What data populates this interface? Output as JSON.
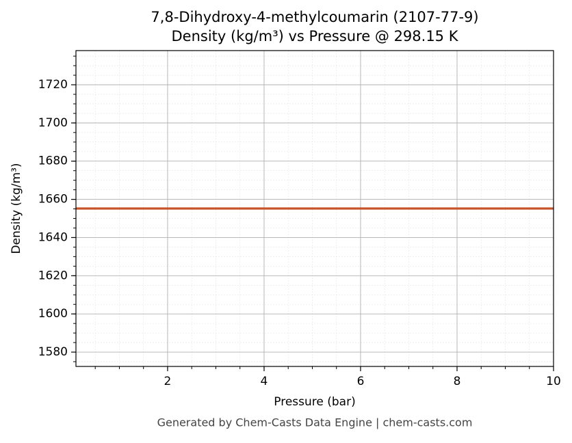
{
  "chart_data": {
    "type": "line",
    "title": [
      "7,8-Dihydroxy-4-methylcoumarin (2107-77-9)",
      "Density (kg/m³) vs Pressure @ 298.15 K"
    ],
    "x_label": "Pressure (bar)",
    "y_label": "Density (kg/m³)",
    "x": [
      0.1,
      10
    ],
    "series": [
      {
        "name": "Density",
        "color": "#c8532a",
        "values": [
          1655.2,
          1655.2
        ]
      }
    ],
    "xlim": [
      0.1,
      10
    ],
    "xticks": [
      2,
      4,
      6,
      8,
      10
    ],
    "ylim": [
      1572.5,
      1737.9
    ],
    "yticks": [
      1580,
      1600,
      1620,
      1640,
      1660,
      1680,
      1700,
      1720
    ],
    "grid": true,
    "minor_grid": true,
    "footer": "Generated by Chem-Casts Data Engine | chem-casts.com"
  }
}
